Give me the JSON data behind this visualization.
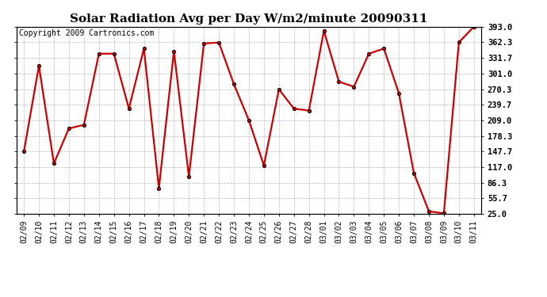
{
  "title": "Solar Radiation Avg per Day W/m2/minute 20090311",
  "copyright": "Copyright 2009 Cartronics.com",
  "dates": [
    "02/09",
    "02/10",
    "02/11",
    "02/12",
    "02/13",
    "02/14",
    "02/15",
    "02/16",
    "02/17",
    "02/18",
    "02/19",
    "02/20",
    "02/21",
    "02/22",
    "02/23",
    "02/24",
    "02/25",
    "02/26",
    "02/27",
    "02/28",
    "03/01",
    "03/02",
    "03/03",
    "03/04",
    "03/05",
    "03/06",
    "03/07",
    "03/08",
    "03/09",
    "03/10",
    "03/11"
  ],
  "values": [
    147.7,
    316.0,
    124.0,
    193.0,
    200.0,
    340.0,
    340.0,
    232.0,
    350.0,
    75.0,
    345.0,
    98.0,
    360.0,
    362.0,
    280.0,
    209.0,
    120.0,
    270.0,
    232.0,
    228.0,
    385.0,
    285.0,
    275.0,
    340.0,
    350.0,
    262.0,
    105.0,
    30.0,
    26.0,
    362.3,
    393.0
  ],
  "yticks": [
    25.0,
    55.7,
    86.3,
    117.0,
    147.7,
    178.3,
    209.0,
    239.7,
    270.3,
    301.0,
    331.7,
    362.3,
    393.0
  ],
  "ymin": 25.0,
  "ymax": 393.0,
  "line_color": "#cc0000",
  "marker_edge_color": "#000000",
  "bg_color": "#ffffff",
  "grid_color": "#999999",
  "title_fontsize": 11,
  "tick_fontsize": 7,
  "copyright_fontsize": 7
}
